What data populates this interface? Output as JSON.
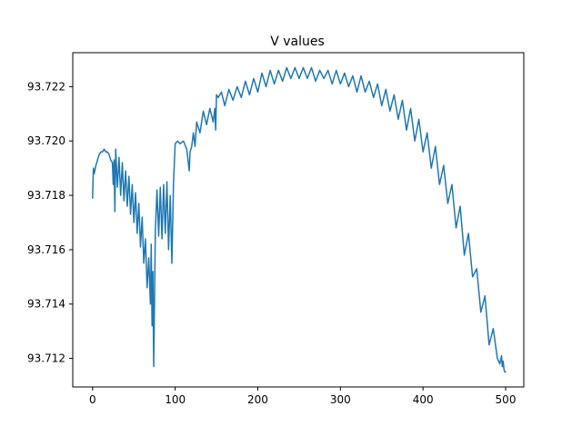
{
  "chart_data": {
    "type": "line",
    "title": "V values",
    "xlabel": "",
    "ylabel": "",
    "xlim": [
      -24,
      522
    ],
    "ylim": [
      93.71095,
      93.72325
    ],
    "x_ticks": [
      0,
      100,
      200,
      300,
      400,
      500
    ],
    "x_tick_labels": [
      "0",
      "100",
      "200",
      "300",
      "400",
      "500"
    ],
    "y_ticks": [
      93.712,
      93.714,
      93.716,
      93.718,
      93.72,
      93.722
    ],
    "y_tick_labels": [
      "93.712",
      "93.714",
      "93.716",
      "93.718",
      "93.720",
      "93.722"
    ],
    "grid": false,
    "series_color": "#1f77b4",
    "series": [
      {
        "name": "V",
        "x": [
          0,
          1,
          2,
          4,
          6,
          8,
          10,
          12,
          14,
          16,
          18,
          20,
          22,
          24,
          25,
          26,
          27,
          28,
          30,
          32,
          34,
          36,
          38,
          40,
          42,
          44,
          46,
          48,
          50,
          52,
          54,
          56,
          58,
          60,
          62,
          64,
          66,
          68,
          70,
          71,
          72,
          73,
          74,
          76,
          78,
          80,
          82,
          84,
          86,
          88,
          90,
          92,
          94,
          96,
          98,
          100,
          103,
          106,
          110,
          114,
          117,
          118,
          120,
          122,
          124,
          126,
          130,
          134,
          138,
          142,
          146,
          148,
          149,
          150,
          152,
          156,
          160,
          165,
          170,
          175,
          180,
          185,
          190,
          195,
          200,
          205,
          210,
          215,
          220,
          225,
          230,
          235,
          240,
          245,
          250,
          255,
          260,
          265,
          270,
          275,
          280,
          285,
          290,
          295,
          300,
          305,
          310,
          315,
          320,
          325,
          330,
          335,
          340,
          345,
          350,
          355,
          360,
          365,
          370,
          375,
          380,
          385,
          390,
          395,
          400,
          405,
          410,
          415,
          420,
          425,
          430,
          435,
          440,
          445,
          450,
          455,
          460,
          465,
          470,
          475,
          480,
          485,
          490,
          493,
          495,
          496,
          497,
          498,
          499,
          500
        ],
        "y": [
          93.7179,
          93.719,
          93.7188,
          93.7191,
          93.7193,
          93.7195,
          93.7196,
          93.7196,
          93.7197,
          93.7196,
          93.7196,
          93.7195,
          93.7193,
          93.7192,
          93.7184,
          93.7193,
          93.7174,
          93.7197,
          93.7183,
          93.7194,
          93.718,
          93.7192,
          93.7178,
          93.7189,
          93.7176,
          93.7187,
          93.7173,
          93.7184,
          93.717,
          93.7181,
          93.7166,
          93.7177,
          93.7161,
          93.7172,
          93.7155,
          93.7164,
          93.7146,
          93.7157,
          93.714,
          93.7162,
          93.7132,
          93.7152,
          93.7117,
          93.7167,
          93.7182,
          93.7165,
          93.7183,
          93.7164,
          93.7184,
          93.7166,
          93.7185,
          93.716,
          93.718,
          93.7155,
          93.7185,
          93.7199,
          93.72,
          93.7199,
          93.72,
          93.7197,
          93.7189,
          93.7196,
          93.7198,
          93.7203,
          93.7198,
          93.7207,
          93.7203,
          93.7211,
          93.7206,
          93.7212,
          93.7207,
          93.7212,
          93.7204,
          93.7217,
          93.7216,
          93.7218,
          93.7213,
          93.7219,
          93.7215,
          93.722,
          93.7216,
          93.7222,
          93.7217,
          93.7223,
          93.7218,
          93.7225,
          93.722,
          93.7226,
          93.7221,
          93.7226,
          93.7222,
          93.7227,
          93.7223,
          93.7227,
          93.7223,
          93.7227,
          93.7223,
          93.7227,
          93.7222,
          93.7226,
          93.7223,
          93.7226,
          93.7221,
          93.7226,
          93.7221,
          93.7225,
          93.722,
          93.7224,
          93.7218,
          93.7224,
          93.7218,
          93.7222,
          93.7216,
          93.7221,
          93.7213,
          93.7219,
          93.7211,
          93.7217,
          93.7208,
          93.7215,
          93.7204,
          93.7212,
          93.72,
          93.7208,
          93.7196,
          93.7203,
          93.719,
          93.7198,
          93.7184,
          93.7191,
          93.7177,
          93.7184,
          93.7168,
          93.7176,
          93.7158,
          93.7166,
          93.715,
          93.7153,
          93.7137,
          93.7143,
          93.7125,
          93.7131,
          93.712,
          93.7118,
          93.7121,
          93.7117,
          93.7119,
          93.7116,
          93.7115,
          93.7115
        ]
      }
    ]
  }
}
